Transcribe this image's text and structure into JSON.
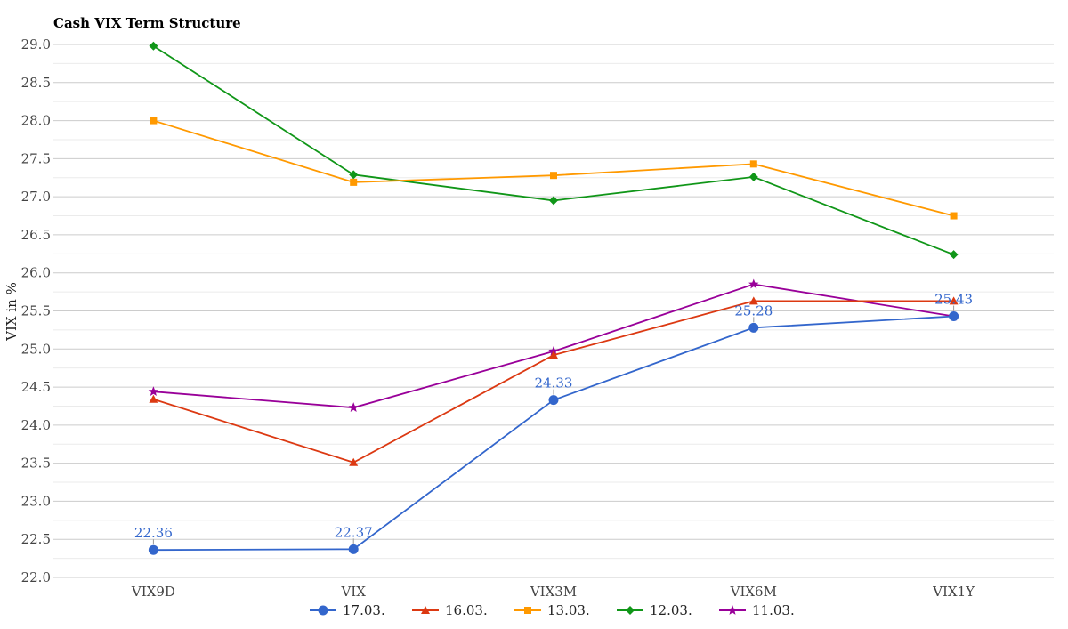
{
  "chart_data": {
    "type": "line",
    "title": "Cash VIX Term Structure",
    "xlabel": "",
    "ylabel": "VIX in %",
    "categories": [
      "VIX9D",
      "VIX",
      "VIX3M",
      "VIX6M",
      "VIX1Y"
    ],
    "ylim": [
      22.0,
      29.0
    ],
    "yticks": [
      "22.0",
      "22.5",
      "23.0",
      "23.5",
      "24.0",
      "24.5",
      "25.0",
      "25.5",
      "26.0",
      "26.5",
      "27.0",
      "27.5",
      "28.0",
      "28.5",
      "29.0"
    ],
    "grid": true,
    "legend_position": "bottom",
    "series": [
      {
        "name": "17.03.",
        "color": "#3366cc",
        "marker": "circle",
        "values": [
          22.36,
          22.37,
          24.33,
          25.28,
          25.43
        ],
        "labels": [
          "22.36",
          "22.37",
          "24.33",
          "25.28",
          "25.43"
        ]
      },
      {
        "name": "16.03.",
        "color": "#dc3912",
        "marker": "triangle",
        "values": [
          24.34,
          23.51,
          24.92,
          25.63,
          25.63
        ]
      },
      {
        "name": "13.03.",
        "color": "#ff9900",
        "marker": "square",
        "values": [
          28.0,
          27.19,
          27.28,
          27.43,
          26.75
        ]
      },
      {
        "name": "12.03.",
        "color": "#109618",
        "marker": "diamond",
        "values": [
          28.98,
          27.29,
          26.95,
          27.26,
          26.24
        ]
      },
      {
        "name": "11.03.",
        "color": "#990099",
        "marker": "star",
        "values": [
          24.44,
          24.23,
          24.97,
          25.85,
          25.43
        ]
      }
    ]
  }
}
